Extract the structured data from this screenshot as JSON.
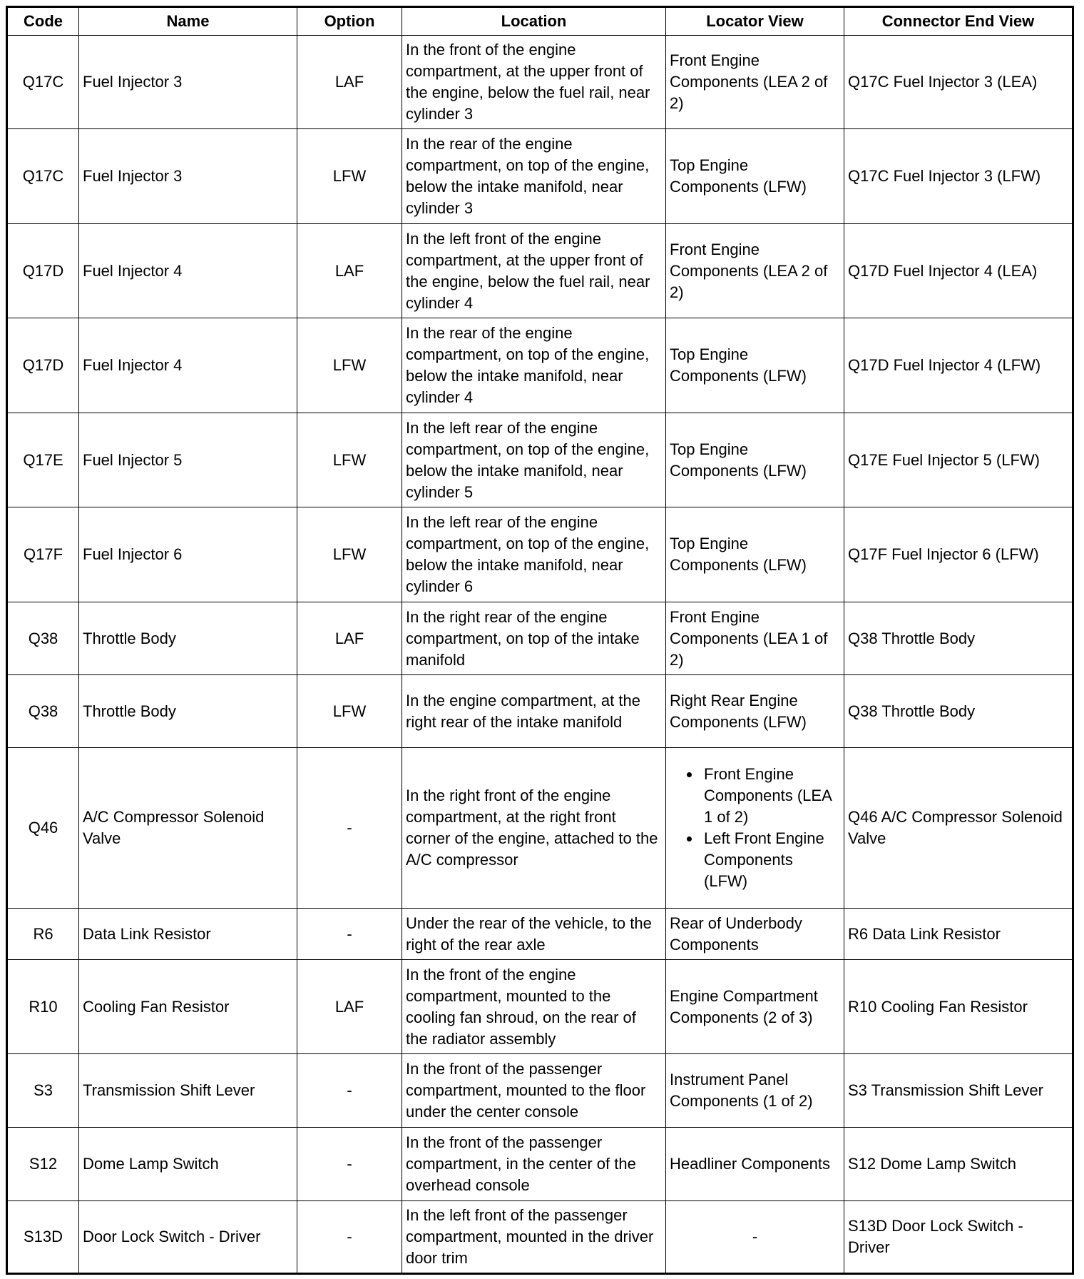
{
  "headers": [
    "Code",
    "Name",
    "Option",
    "Location",
    "Locator View",
    "Connector End View"
  ],
  "rows": [
    {
      "code": "Q17C",
      "name": "Fuel Injector 3",
      "option": "LAF",
      "location": "In the front of the engine compartment, at the upper front of the engine, below the fuel rail, near cylinder 3",
      "locator": [
        "Front Engine Components (LEA 2 of 2)"
      ],
      "connector": "Q17C Fuel Injector 3 (LEA)"
    },
    {
      "code": "Q17C",
      "name": "Fuel Injector 3",
      "option": "LFW",
      "location": "In the rear of the engine compartment, on top of the engine, below the intake manifold, near cylinder 3",
      "locator": [
        "Top Engine Components (LFW)"
      ],
      "connector": "Q17C Fuel Injector 3 (LFW)"
    },
    {
      "code": "Q17D",
      "name": "Fuel Injector 4",
      "option": "LAF",
      "location": "In the left front of the engine compartment, at the upper front of the engine, below the fuel rail, near cylinder 4",
      "locator": [
        "Front Engine Components (LEA 2 of 2)"
      ],
      "connector": "Q17D Fuel Injector 4 (LEA)"
    },
    {
      "code": "Q17D",
      "name": "Fuel Injector 4",
      "option": "LFW",
      "location": "In the rear of the engine compartment, on top of the engine, below the intake manifold, near cylinder 4",
      "locator": [
        "Top Engine Components (LFW)"
      ],
      "connector": "Q17D Fuel Injector 4 (LFW)"
    },
    {
      "code": "Q17E",
      "name": "Fuel Injector 5",
      "option": "LFW",
      "location": "In the left rear of the engine compartment, on top of the engine, below the intake manifold, near cylinder 5",
      "locator": [
        "Top Engine Components (LFW)"
      ],
      "connector": "Q17E Fuel Injector 5 (LFW)"
    },
    {
      "code": "Q17F",
      "name": "Fuel Injector 6",
      "option": "LFW",
      "location": "In the left rear of the engine compartment, on top of the engine, below the intake manifold, near cylinder 6",
      "locator": [
        "Top Engine Components (LFW)"
      ],
      "connector": "Q17F Fuel Injector 6 (LFW)"
    },
    {
      "code": "Q38",
      "name": "Throttle Body",
      "option": "LAF",
      "location": "In the right rear of the engine compartment, on top of the intake manifold",
      "locator": [
        "Front Engine Components (LEA 1 of 2)"
      ],
      "connector": "Q38 Throttle Body"
    },
    {
      "code": "Q38",
      "name": "Throttle Body",
      "option": "LFW",
      "location": "In the engine compartment, at the right rear of the intake manifold",
      "locator": [
        "Right Rear Engine Components (LFW)"
      ],
      "connector": "Q38 Throttle Body"
    },
    {
      "code": "Q46",
      "name": "A/C Compressor Solenoid Valve",
      "option": "-",
      "location": "In the right front of the engine compartment, at the right front corner of the engine, attached to the A/C compressor",
      "locator": [
        "Front Engine Components (LEA 1 of 2)",
        "Left Front Engine Components (LFW)"
      ],
      "connector": "Q46 A/C Compressor Solenoid Valve"
    },
    {
      "code": "R6",
      "name": "Data Link Resistor",
      "option": "-",
      "location": "Under the rear of the vehicle, to the right of the rear axle",
      "locator": [
        "Rear of Underbody Components"
      ],
      "connector": "R6 Data Link Resistor"
    },
    {
      "code": "R10",
      "name": "Cooling Fan Resistor",
      "option": "LAF",
      "location": "In the front of the engine compartment, mounted to the cooling fan shroud, on the rear of the radiator assembly",
      "locator": [
        "Engine Compartment Components (2 of 3)"
      ],
      "connector": "R10 Cooling Fan Resistor"
    },
    {
      "code": "S3",
      "name": "Transmission Shift Lever",
      "option": "-",
      "location": "In the front of the passenger compartment, mounted to the floor under the center console",
      "locator": [
        "Instrument Panel Components (1 of 2)"
      ],
      "connector": "S3 Transmission Shift Lever"
    },
    {
      "code": "S12",
      "name": "Dome Lamp Switch",
      "option": "-",
      "location": "In the front of the passenger compartment, in the center of the overhead console",
      "locator": [
        "Headliner Components"
      ],
      "connector": "S12 Dome Lamp Switch"
    },
    {
      "code": "S13D",
      "name": "Door Lock Switch - Driver",
      "option": "-",
      "location": "In the left front of the passenger compartment, mounted in the driver door trim",
      "locator": [
        "-"
      ],
      "connector": "S13D Door Lock Switch - Driver"
    }
  ]
}
